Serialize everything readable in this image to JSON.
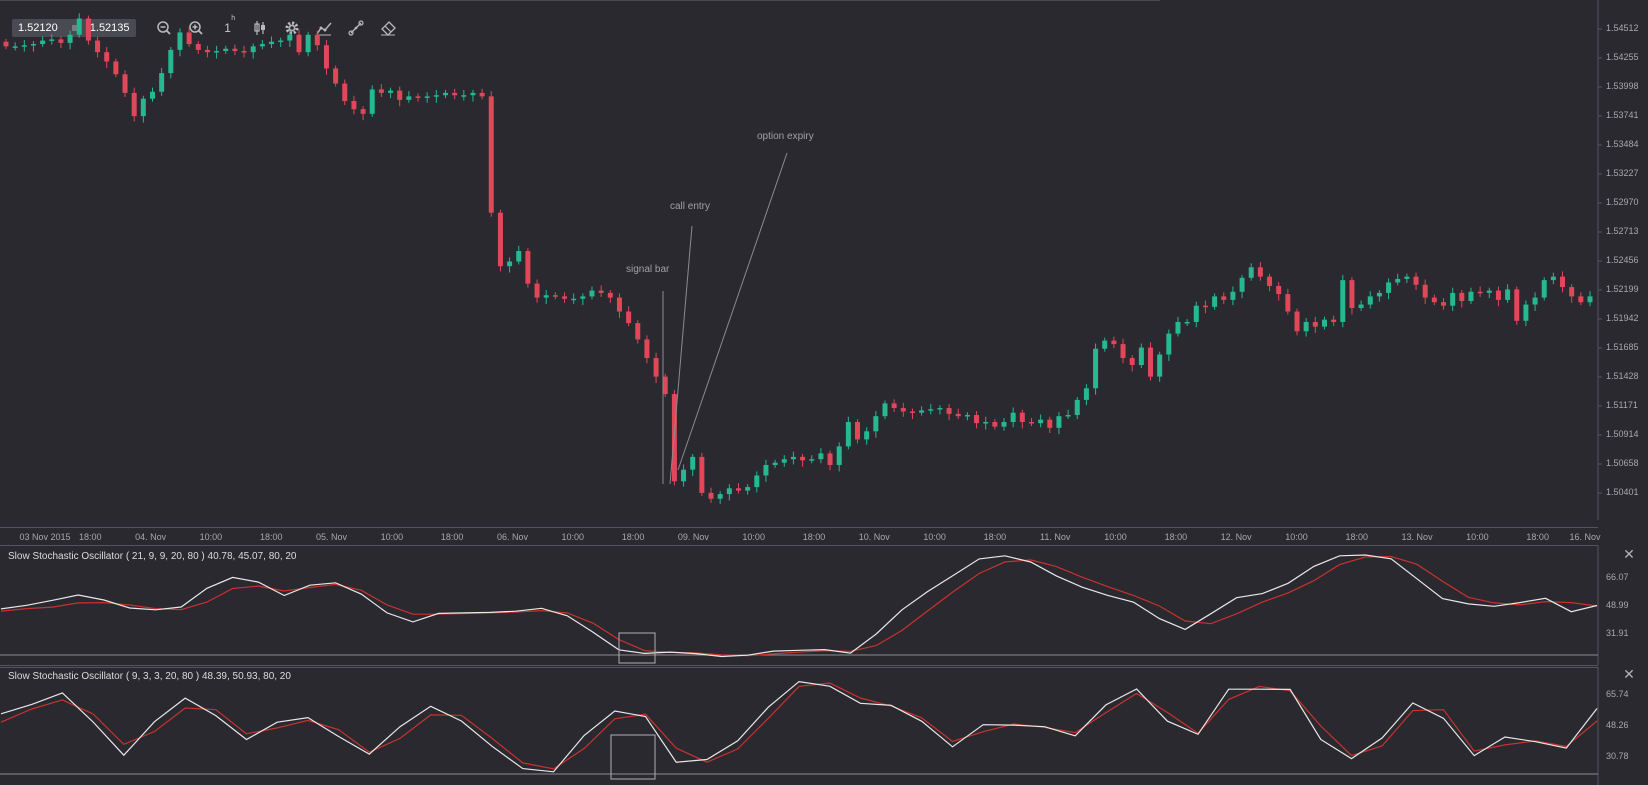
{
  "toolbar": {
    "bid": "1.52120",
    "ask": "1.52135",
    "timeframe": "1",
    "timeframe_unit": "h",
    "tools": [
      "zoom-out-icon",
      "zoom-in-icon",
      "timeframe",
      "candles-icon",
      "gear-icon",
      "indicators-icon",
      "draw-line-icon",
      "eraser-icon"
    ]
  },
  "annotations": {
    "signal_bar": "signal bar",
    "call_entry": "call entry",
    "option_expiry": "option expiry"
  },
  "price_axis": {
    "labels": [
      "1.54512",
      "1.54255",
      "1.53998",
      "1.53741",
      "1.53484",
      "1.53227",
      "1.52970",
      "1.52713",
      "1.52456",
      "1.52199",
      "1.51942",
      "1.51685",
      "1.51428",
      "1.51171",
      "1.50914",
      "1.50658",
      "1.50401"
    ]
  },
  "time_axis": {
    "labels": [
      "03 Nov 2015",
      "18:00",
      "04. Nov",
      "10:00",
      "18:00",
      "05. Nov",
      "10:00",
      "18:00",
      "06. Nov",
      "10:00",
      "18:00",
      "09. Nov",
      "10:00",
      "18:00",
      "10. Nov",
      "10:00",
      "18:00",
      "11. Nov",
      "10:00",
      "18:00",
      "12. Nov",
      "10:00",
      "18:00",
      "13. Nov",
      "10:00",
      "18:00",
      "16. Nov"
    ]
  },
  "oscillator1": {
    "title": "Slow Stochastic Oscillator ( 21, 9, 9, 20, 80 ) 40.78, 45.07, 80, 20",
    "axis": [
      "66.07",
      "48.99",
      "31.91"
    ]
  },
  "oscillator2": {
    "title": "Slow Stochastic Oscillator ( 9, 3, 3, 20, 80 ) 48.39, 50.93, 80, 20",
    "axis": [
      "65.74",
      "48.26",
      "30.78"
    ]
  },
  "colors": {
    "background": "#2a292f",
    "bull": "#26b88e",
    "bear": "#e0485a",
    "osc_main": "#e8e8e8",
    "osc_signal": "#c8322e",
    "grid": "#55545c"
  },
  "chart_data": [
    {
      "type": "candlestick",
      "title": "",
      "ylim": [
        1.5022,
        1.5464
      ],
      "closes": [
        1.5431,
        1.5431,
        1.5432,
        1.5433,
        1.5436,
        1.5437,
        1.5434,
        1.5441,
        1.5455,
        1.5436,
        1.5426,
        1.5418,
        1.5407,
        1.5391,
        1.5371,
        1.5386,
        1.5392,
        1.5408,
        1.5428,
        1.5443,
        1.5433,
        1.5428,
        1.5426,
        1.5427,
        1.5429,
        1.5427,
        1.5426,
        1.5431,
        1.5433,
        1.5435,
        1.5436,
        1.5441,
        1.5426,
        1.5441,
        1.5432,
        1.5412,
        1.5399,
        1.5384,
        1.5377,
        1.5373,
        1.5394,
        1.5391,
        1.5393,
        1.5385,
        1.5388,
        1.5387,
        1.5388,
        1.5389,
        1.5391,
        1.5389,
        1.5389,
        1.5391,
        1.5388,
        1.5288,
        1.5242,
        1.5246,
        1.5255,
        1.5227,
        1.5215,
        1.5217,
        1.5216,
        1.5214,
        1.5214,
        1.5216,
        1.5221,
        1.5219,
        1.5215,
        1.5203,
        1.5193,
        1.5179,
        1.5163,
        1.5147,
        1.5132,
        1.5057,
        1.5067,
        1.5078,
        1.5047,
        1.5042,
        1.5046,
        1.5051,
        1.5049,
        1.5052,
        1.5062,
        1.5071,
        1.5073,
        1.5076,
        1.5078,
        1.5075,
        1.5076,
        1.5081,
        1.5071,
        1.5087,
        1.5108,
        1.5093,
        1.51,
        1.5113,
        1.5124,
        1.512,
        1.5117,
        1.5116,
        1.5118,
        1.5119,
        1.512,
        1.5115,
        1.5113,
        1.5114,
        1.5107,
        1.5108,
        1.5104,
        1.5108,
        1.5116,
        1.5108,
        1.5107,
        1.511,
        1.5103,
        1.5113,
        1.5114,
        1.5127,
        1.5137,
        1.5171,
        1.5178,
        1.5175,
        1.5163,
        1.5157,
        1.5172,
        1.5147,
        1.5166,
        1.5184,
        1.5194,
        1.5194,
        1.5208,
        1.5207,
        1.5216,
        1.5213,
        1.522,
        1.5232,
        1.5241,
        1.5233,
        1.5225,
        1.5218,
        1.5203,
        1.5186,
        1.5194,
        1.519,
        1.5196,
        1.5194,
        1.523,
        1.5206,
        1.5209,
        1.5216,
        1.5219,
        1.5228,
        1.5231,
        1.5233,
        1.5226,
        1.5215,
        1.5211,
        1.5208,
        1.5219,
        1.5212,
        1.522,
        1.5219,
        1.5221,
        1.5213,
        1.5222,
        1.5195,
        1.5209,
        1.5215,
        1.523,
        1.5233,
        1.5224,
        1.5216,
        1.5211,
        1.5216
      ]
    },
    {
      "type": "line",
      "title": "",
      "ylim": [
        17.6,
        80.0
      ],
      "series": [
        {
          "values": [
            47.0,
            49.2,
            52.3,
            55.5,
            52.5,
            47.6,
            46.5,
            48.2,
            59.6,
            66.3,
            63.4,
            55.2,
            61.5,
            63.0,
            56.0,
            44.6,
            39.1,
            44.3,
            44.6,
            44.9,
            45.6,
            47.4,
            42.8,
            32.7,
            22.0,
            19.8,
            20.6,
            19.7,
            17.9,
            18.7,
            21.2,
            21.7,
            22.1,
            20.0,
            31.7,
            46.5,
            57.7,
            67.6,
            77.6,
            79.5,
            75.7,
            67.2,
            60.3,
            55.3,
            51.1,
            41.1,
            34.5,
            44.1,
            53.9,
            56.4,
            62.7,
            73.0,
            79.5,
            80.0,
            77.7,
            65.5,
            53.3,
            50.1,
            48.6,
            50.9,
            53.5,
            45.3,
            49.1
          ]
        },
        {
          "values": [
            45.7,
            47.2,
            48.1,
            50.7,
            50.9,
            49.4,
            47.2,
            46.6,
            51.2,
            59.5,
            61.0,
            58.0,
            60.1,
            62.0,
            58.4,
            49.5,
            43.8,
            43.8,
            44.2,
            44.6,
            45.1,
            46.0,
            44.5,
            38.3,
            28.3,
            21.5,
            20.4,
            20.2,
            18.9,
            18.4,
            19.5,
            20.6,
            21.5,
            21.1,
            24.6,
            33.9,
            45.8,
            57.7,
            68.7,
            75.8,
            77.0,
            72.9,
            66.4,
            60.6,
            55.2,
            48.8,
            39.6,
            38.0,
            44.0,
            51.2,
            56.8,
            64.3,
            74.1,
            78.8,
            79.1,
            74.4,
            64.0,
            54.1,
            50.7,
            49.5,
            51.5,
            50.9,
            48.8
          ]
        }
      ]
    },
    {
      "type": "line",
      "title": "",
      "ylim": [
        18.0,
        78.0
      ],
      "series": [
        {
          "values": [
            55.1,
            60.4,
            66.8,
            50.5,
            31.9,
            50.7,
            63.9,
            54.1,
            40.7,
            50.4,
            53.0,
            42.4,
            32.5,
            47.9,
            59.3,
            51.1,
            36.9,
            24.4,
            22.6,
            43.0,
            56.7,
            53.6,
            28.0,
            29.5,
            39.9,
            58.8,
            73.2,
            70.6,
            61.0,
            59.9,
            50.9,
            36.6,
            49.0,
            48.8,
            47.9,
            42.8,
            60.1,
            69.0,
            51.0,
            43.6,
            68.9,
            68.9,
            68.8,
            40.7,
            30.0,
            41.6,
            61.2,
            52.6,
            31.7,
            42.1,
            39.5,
            35.9,
            58.1
          ]
        },
        {
          "values": [
            50.4,
            57.8,
            62.9,
            55.0,
            38.0,
            45.2,
            58.4,
            57.4,
            43.9,
            47.2,
            51.4,
            46.2,
            33.6,
            41.3,
            54.5,
            54.3,
            41.3,
            27.6,
            24.2,
            35.7,
            52.3,
            54.9,
            35.9,
            28.0,
            35.4,
            52.6,
            70.5,
            72.4,
            64.0,
            59.5,
            52.8,
            39.6,
            45.1,
            49.4,
            47.5,
            44.6,
            55.8,
            66.5,
            55.9,
            44.2,
            63.2,
            70.5,
            68.0,
            48.3,
            31.7,
            37.2,
            56.9,
            57.4,
            34.2,
            37.7,
            39.9,
            36.8,
            51.1
          ]
        }
      ]
    }
  ]
}
